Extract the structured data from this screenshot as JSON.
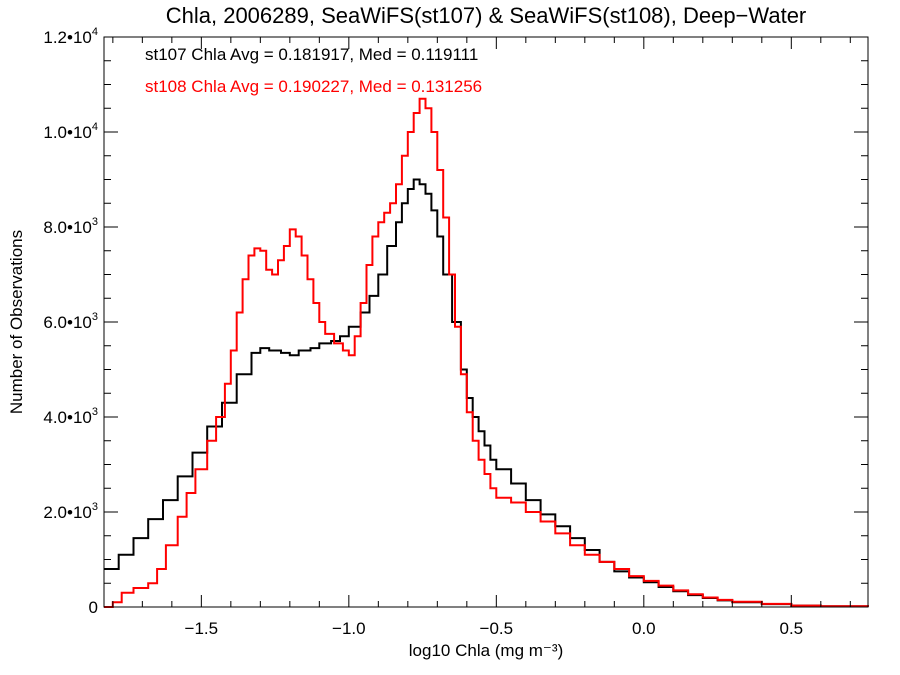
{
  "chart_data": {
    "type": "line",
    "title": "Chla, 2006289, SeaWiFS(st107) & SeaWiFS(st108), Deep−Water",
    "xlabel": "log10 Chla (mg m⁻³)",
    "ylabel": "Number of Observations",
    "xlim": [
      -1.83,
      0.76
    ],
    "ylim": [
      0,
      12000
    ],
    "x_ticks": [
      -1.5,
      -1.0,
      -0.5,
      0.0,
      0.5
    ],
    "x_tick_labels": [
      "−1.5",
      "−1.0",
      "−0.5",
      "0.0",
      "0.5"
    ],
    "y_ticks": [
      0,
      2000,
      4000,
      6000,
      8000,
      10000,
      12000
    ],
    "y_tick_labels": [
      {
        "mantissa": "0",
        "exp": ""
      },
      {
        "mantissa": "2.0•10",
        "exp": "3"
      },
      {
        "mantissa": "4.0•10",
        "exp": "3"
      },
      {
        "mantissa": "6.0•10",
        "exp": "3"
      },
      {
        "mantissa": "8.0•10",
        "exp": "3"
      },
      {
        "mantissa": "1.0•10",
        "exp": "4"
      },
      {
        "mantissa": "1.2•10",
        "exp": "4"
      }
    ],
    "annotations": [
      {
        "text": "st107 Chla Avg = 0.181917, Med = 0.119111",
        "color": "#000000"
      },
      {
        "text": "st108 Chla Avg = 0.190227, Med = 0.131256",
        "color": "#ff0000"
      }
    ],
    "series": [
      {
        "color": "#000000",
        "x": [
          -1.83,
          -1.78,
          -1.73,
          -1.68,
          -1.63,
          -1.58,
          -1.53,
          -1.48,
          -1.43,
          -1.38,
          -1.33,
          -1.3,
          -1.27,
          -1.23,
          -1.2,
          -1.17,
          -1.13,
          -1.1,
          -1.06,
          -1.03,
          -1.0,
          -0.96,
          -0.93,
          -0.9,
          -0.87,
          -0.84,
          -0.82,
          -0.8,
          -0.78,
          -0.76,
          -0.74,
          -0.72,
          -0.7,
          -0.68,
          -0.65,
          -0.62,
          -0.6,
          -0.58,
          -0.56,
          -0.54,
          -0.52,
          -0.5,
          -0.45,
          -0.4,
          -0.35,
          -0.3,
          -0.25,
          -0.2,
          -0.15,
          -0.1,
          -0.05,
          0.0,
          0.05,
          0.1,
          0.15,
          0.2,
          0.25,
          0.3,
          0.4,
          0.5,
          0.6,
          0.76
        ],
        "y": [
          800,
          1100,
          1450,
          1850,
          2250,
          2750,
          3250,
          3800,
          4300,
          4900,
          5350,
          5450,
          5400,
          5350,
          5300,
          5400,
          5450,
          5550,
          5600,
          5700,
          5900,
          6200,
          6550,
          7000,
          7600,
          8100,
          8500,
          8800,
          9000,
          8900,
          8700,
          8350,
          7800,
          7000,
          6000,
          5000,
          4400,
          4000,
          3700,
          3400,
          3100,
          2900,
          2600,
          2250,
          1950,
          1700,
          1450,
          1200,
          950,
          750,
          620,
          520,
          420,
          330,
          250,
          190,
          140,
          100,
          60,
          30,
          15,
          5
        ]
      },
      {
        "color": "#ff0000",
        "x": [
          -1.83,
          -1.8,
          -1.77,
          -1.73,
          -1.68,
          -1.65,
          -1.62,
          -1.58,
          -1.55,
          -1.52,
          -1.48,
          -1.45,
          -1.42,
          -1.4,
          -1.38,
          -1.36,
          -1.34,
          -1.32,
          -1.3,
          -1.28,
          -1.26,
          -1.24,
          -1.22,
          -1.2,
          -1.18,
          -1.16,
          -1.14,
          -1.12,
          -1.1,
          -1.08,
          -1.05,
          -1.02,
          -1.0,
          -0.98,
          -0.96,
          -0.94,
          -0.92,
          -0.9,
          -0.88,
          -0.86,
          -0.84,
          -0.82,
          -0.8,
          -0.78,
          -0.76,
          -0.74,
          -0.72,
          -0.7,
          -0.68,
          -0.66,
          -0.64,
          -0.62,
          -0.6,
          -0.58,
          -0.56,
          -0.54,
          -0.52,
          -0.5,
          -0.45,
          -0.4,
          -0.35,
          -0.3,
          -0.25,
          -0.2,
          -0.15,
          -0.1,
          -0.05,
          0.0,
          0.05,
          0.1,
          0.15,
          0.2,
          0.25,
          0.3,
          0.4,
          0.5,
          0.6,
          0.76
        ],
        "y": [
          0,
          100,
          300,
          400,
          500,
          800,
          1300,
          1900,
          2400,
          2900,
          3500,
          4000,
          4700,
          5400,
          6200,
          6900,
          7400,
          7550,
          7500,
          7100,
          7000,
          7300,
          7600,
          7950,
          7800,
          7400,
          6900,
          6400,
          6000,
          5750,
          5550,
          5400,
          5300,
          5700,
          6400,
          7200,
          7800,
          8100,
          8300,
          8500,
          8900,
          9500,
          10000,
          10400,
          10700,
          10500,
          10000,
          9200,
          8200,
          7000,
          5900,
          4900,
          4100,
          3500,
          3100,
          2800,
          2500,
          2300,
          2200,
          2000,
          1800,
          1550,
          1300,
          1100,
          950,
          800,
          650,
          550,
          450,
          350,
          270,
          200,
          150,
          110,
          65,
          30,
          15,
          5
        ]
      }
    ]
  }
}
